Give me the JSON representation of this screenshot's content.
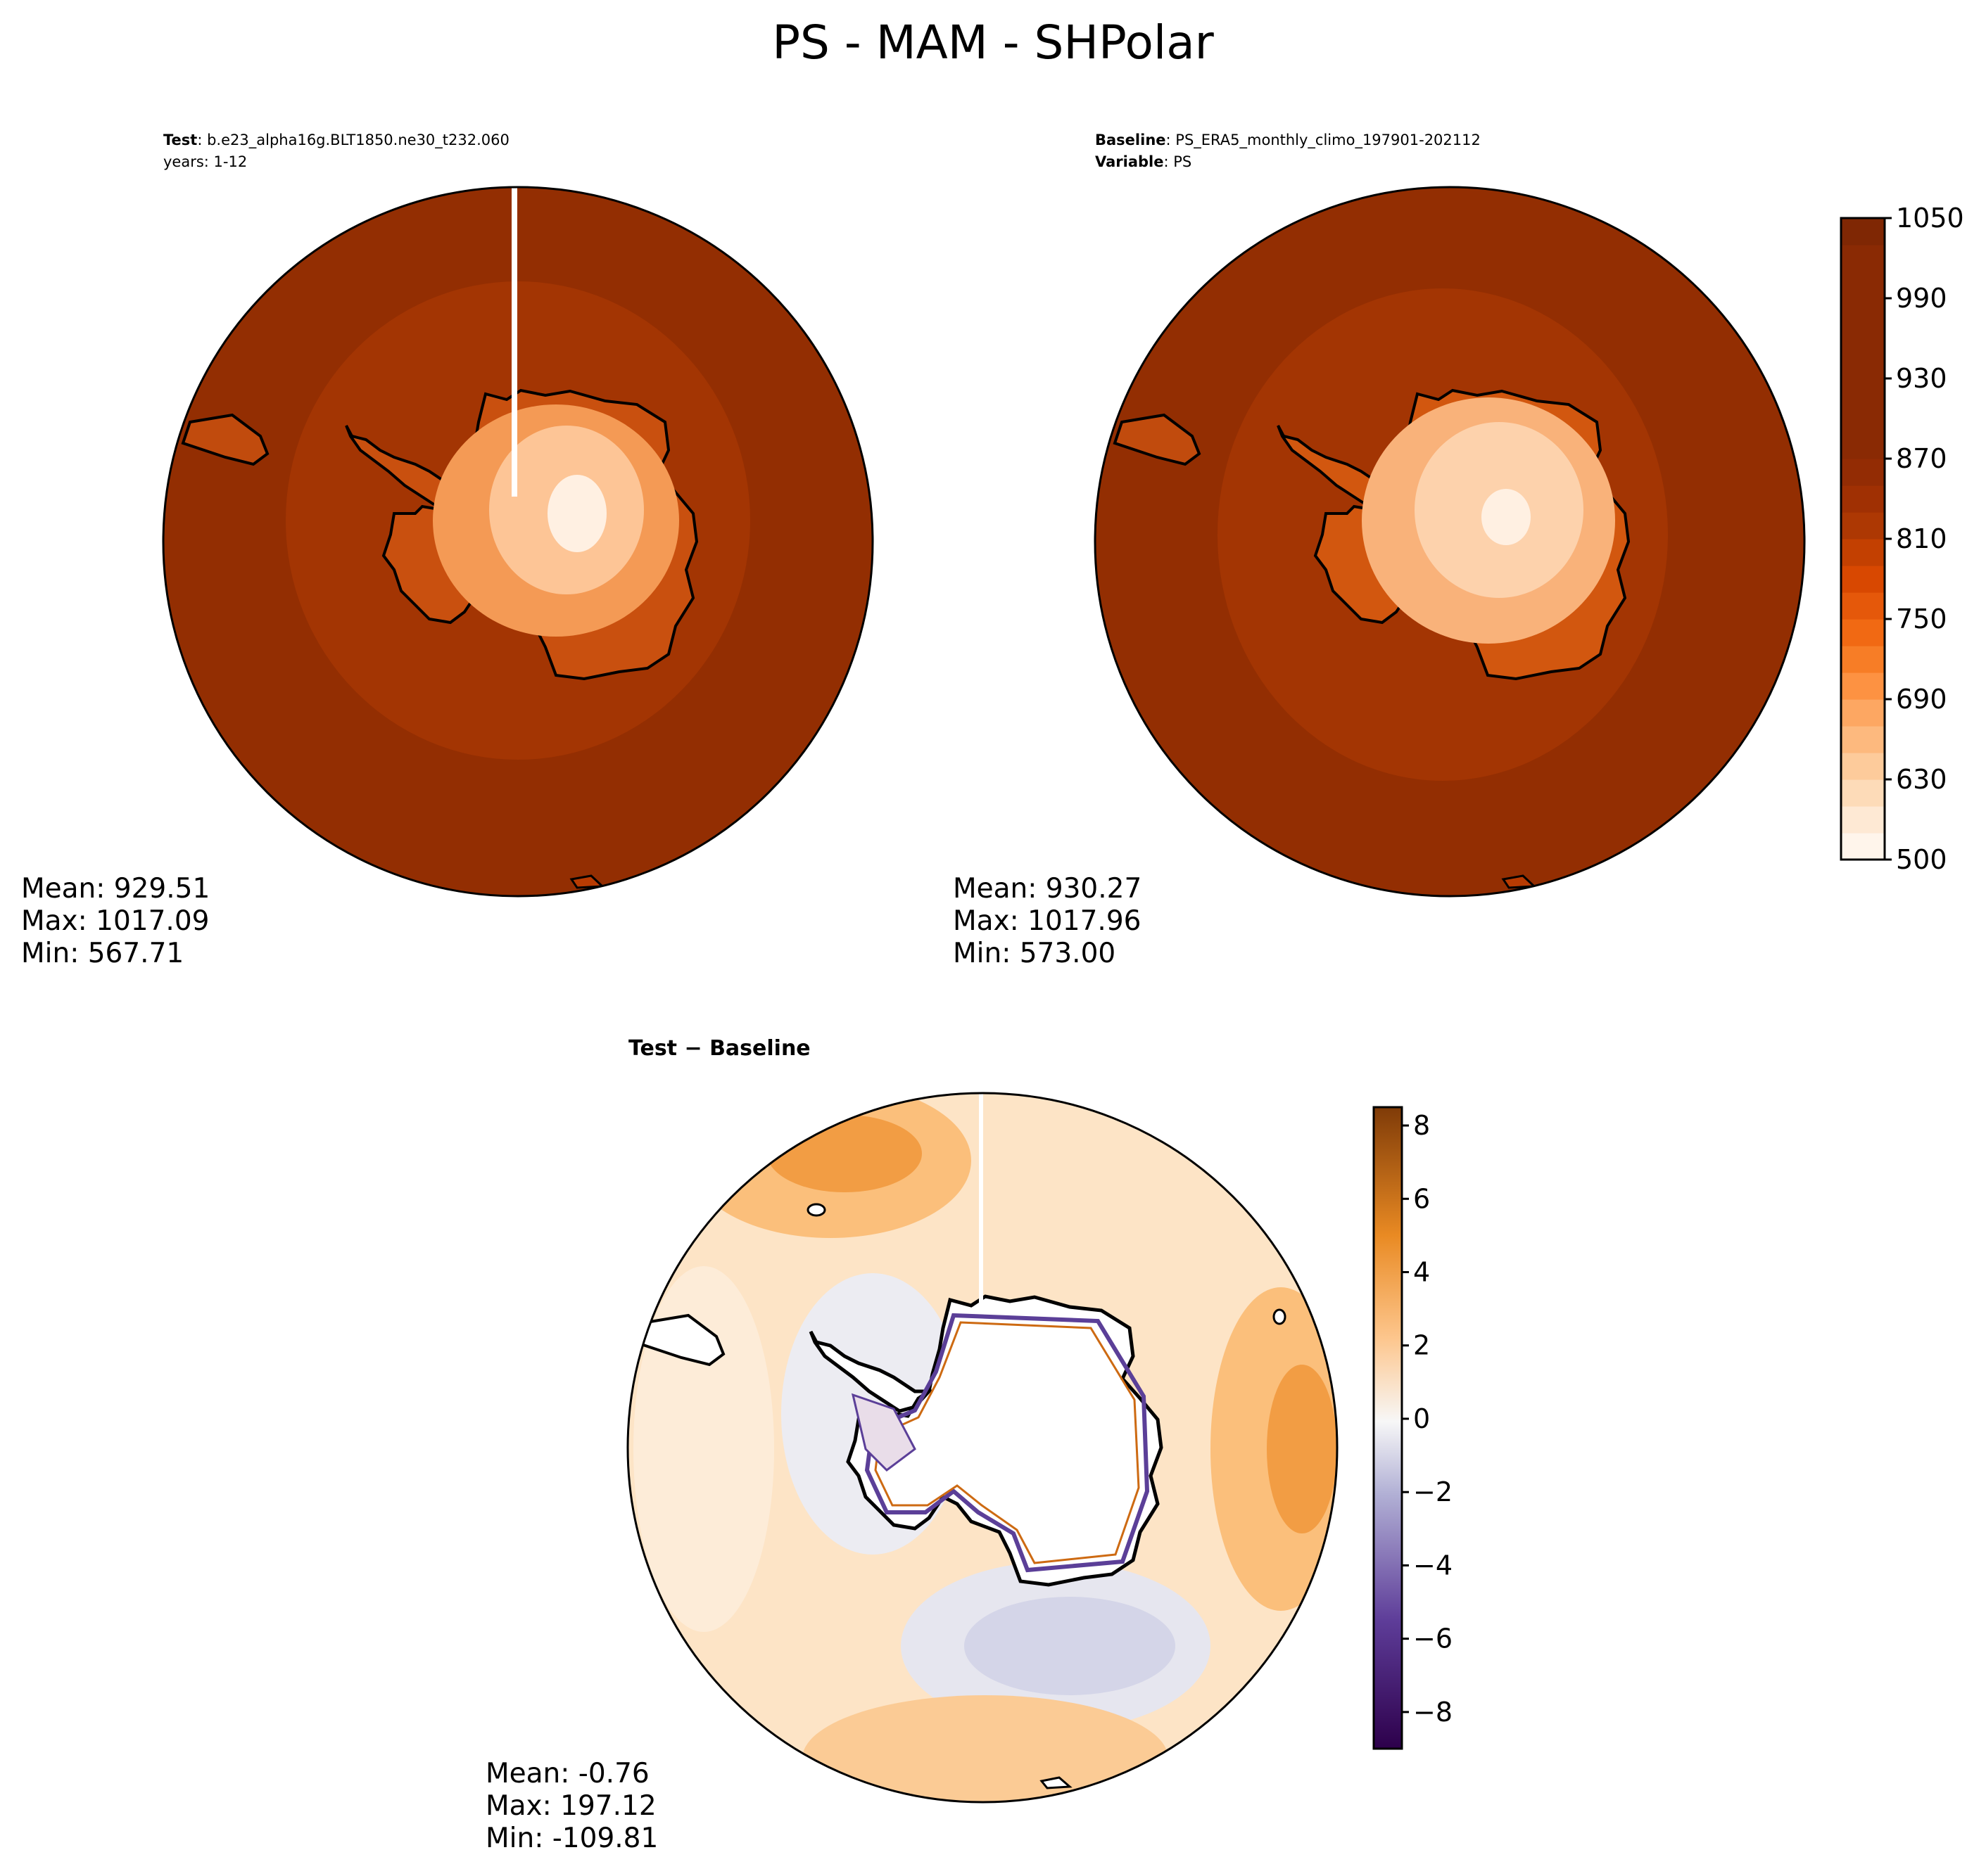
{
  "title": "PS - MAM - SHPolar",
  "test_panel": {
    "label_key": "Test",
    "label_sep": ": ",
    "label_value": "b.e23_alpha16g.BLT1850.ne30_t232.060",
    "years_line": "years: 1-12",
    "stats": [
      "Mean: 929.51",
      "Max: 1017.09",
      "Min: 567.71"
    ]
  },
  "baseline_panel": {
    "label_key": "Baseline",
    "label_sep": ": ",
    "label_value": "PS_ERA5_monthly_climo_197901-202112",
    "variable_key": "Variable",
    "variable_sep": ": ",
    "variable_value": "PS",
    "stats": [
      "Mean: 930.27",
      "Max: 1017.96",
      "Min: 573.00"
    ]
  },
  "diff_panel": {
    "title_left": "Test",
    "title_mid": " − ",
    "title_right": "Baseline",
    "stats": [
      "Mean: -0.76",
      "Max: 197.12",
      "Min: -109.81"
    ]
  },
  "abs_colorbar": {
    "min": 500,
    "max": 1050,
    "boundaries": [
      500,
      600,
      620,
      640,
      660,
      680,
      700,
      720,
      740,
      760,
      780,
      800,
      820,
      840,
      860,
      880,
      900,
      920,
      940,
      960,
      980,
      1000,
      1020,
      1040,
      1050
    ],
    "tick_labels": [
      "500",
      "630",
      "690",
      "750",
      "810",
      "870",
      "930",
      "990",
      "1050"
    ],
    "colors": [
      "#fff5eb",
      "#fee9d4",
      "#fddbb8",
      "#fdcb9b",
      "#fdb97e",
      "#fda762",
      "#fd9242",
      "#f77d26",
      "#f16913",
      "#e5580a",
      "#d84801",
      "#c34001",
      "#ad3803",
      "#a03003",
      "#932c04",
      "#8a2a04",
      "#8a2a04",
      "#8a2a04",
      "#8a2a04",
      "#8a2a04",
      "#8a2a04",
      "#8a2a04",
      "#8a2a04",
      "#7f2704"
    ]
  },
  "diff_colorbar": {
    "min": -9,
    "max": 8.5,
    "tick_labels": [
      "−8",
      "−6",
      "−4",
      "−2",
      "0",
      "2",
      "4",
      "6",
      "8"
    ],
    "tick_values": [
      -8,
      -6,
      -4,
      -2,
      0,
      2,
      4,
      6,
      8
    ],
    "neg_color": "#2d004b",
    "mid_color": "#f7f7f7",
    "pos_color": "#7f3b08"
  },
  "map_colors": {
    "ocean_deep": "#932e02",
    "ocean_ring": "#a33503",
    "coast_land": "#b83b02",
    "land_mid": "#f07a30",
    "land_light": "#fdc596",
    "dome": "#fff0e2",
    "diff_base": "#fde4c6",
    "diff_warm": "#fbbf7b",
    "diff_hot": "#f29d44",
    "diff_cool": "#d9d9ea",
    "diff_coolmid": "#cfd0e6",
    "diff_purple": "#5b3f98",
    "diff_orange_line": "#cd6a12"
  }
}
